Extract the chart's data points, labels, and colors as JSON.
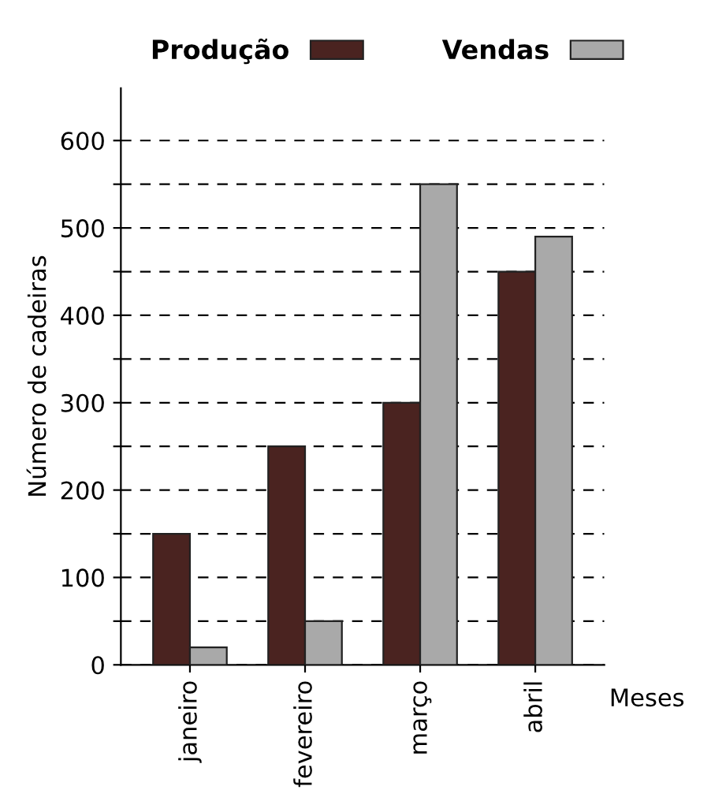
{
  "chart_data": {
    "type": "bar",
    "xlabel": "Meses",
    "ylabel": "Número de cadeiras",
    "categories": [
      "janeiro",
      "fevereiro",
      "março",
      "abril"
    ],
    "series": [
      {
        "name": "Produção",
        "color": "#4a2320",
        "values": [
          150,
          250,
          300,
          450
        ]
      },
      {
        "name": "Vendas",
        "color": "#a9a9a9",
        "values": [
          20,
          50,
          550,
          490
        ]
      }
    ],
    "ylim": [
      0,
      660
    ],
    "yticks": [
      0,
      {
        "value": 50,
        "label": null
      },
      100,
      {
        "value": 150,
        "label": null
      },
      200,
      {
        "value": 250,
        "label": null
      },
      300,
      {
        "value": 350,
        "label": null
      },
      400,
      {
        "value": 450,
        "label": null
      },
      500,
      {
        "value": 550,
        "label": null
      },
      600
    ],
    "grid": "y",
    "legend": "top"
  }
}
